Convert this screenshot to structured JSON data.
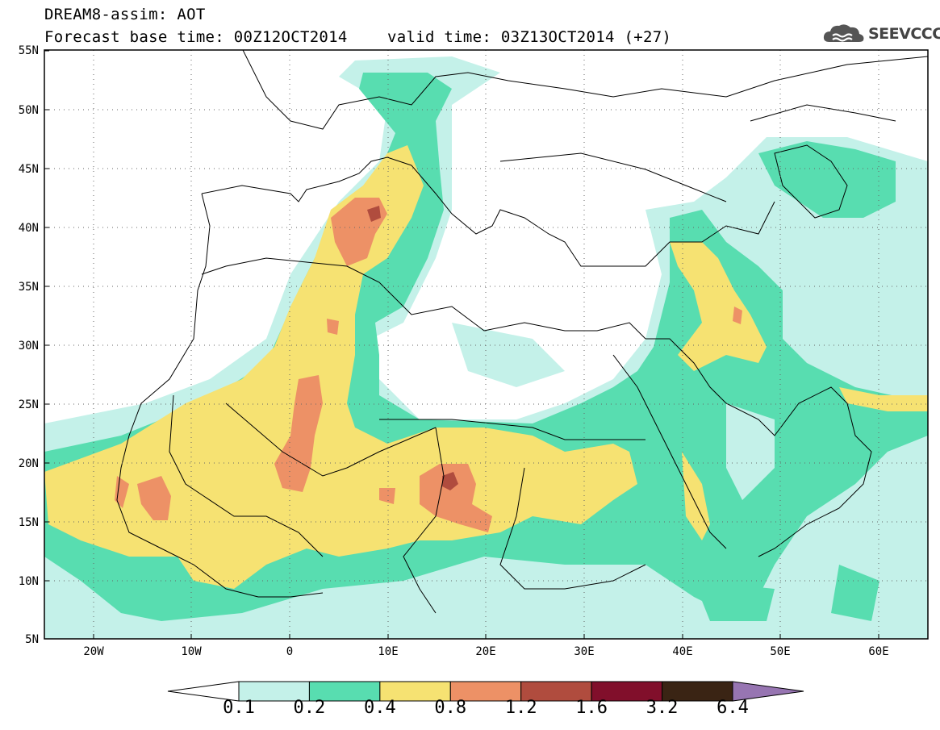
{
  "header": {
    "title": "DREAM8-assim: AOT",
    "base_time": "Forecast base time: 00Z12OCT2014",
    "valid_time": "valid time: 03Z13OCT2014 (+27)"
  },
  "logo": {
    "text": "SEEVCCC",
    "icon": "cloud-logo-icon"
  },
  "map": {
    "lat_labels": [
      "55N",
      "50N",
      "45N",
      "40N",
      "35N",
      "30N",
      "25N",
      "20N",
      "15N",
      "10N",
      "5N"
    ],
    "lon_labels": [
      "20W",
      "10W",
      "0",
      "10E",
      "20E",
      "30E",
      "40E",
      "50E",
      "60E"
    ],
    "lat_range": [
      5,
      55
    ],
    "lon_range": [
      -25,
      65
    ],
    "gridlines": true
  },
  "legend": {
    "colors": [
      "#ffffff",
      "#c4f1e9",
      "#58ddb0",
      "#f6e272",
      "#ed9166",
      "#b04c3e",
      "#810f2b",
      "#3a2414",
      "#9775b2"
    ],
    "ticks": [
      "0.1",
      "0.2",
      "0.4",
      "0.8",
      "1.2",
      "1.6",
      "3.2",
      "6.4"
    ]
  }
}
